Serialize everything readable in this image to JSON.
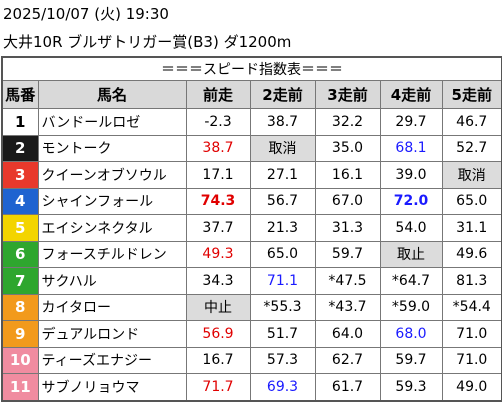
{
  "header": {
    "datetime": "2025/10/07 (火) 19:30",
    "race": "大井10R ブルザトリガー賞(B3) ダ1200m"
  },
  "table": {
    "title": "＝＝＝スピード指数表＝＝＝",
    "columns": [
      "馬番",
      "馬名",
      "前走",
      "2走前",
      "3走前",
      "4走前",
      "5走前"
    ],
    "rows": [
      {
        "number": "1",
        "number_bg": "#ffffff",
        "number_color": "#000000",
        "name": "バンドールロゼ",
        "cells": [
          {
            "text": "-2.3"
          },
          {
            "text": "38.7"
          },
          {
            "text": "32.2"
          },
          {
            "text": "29.7"
          },
          {
            "text": "46.7"
          }
        ]
      },
      {
        "number": "2",
        "number_bg": "#1a1a1a",
        "number_color": "#ffffff",
        "name": "モントーク",
        "cells": [
          {
            "text": "38.7",
            "color": "#e00000"
          },
          {
            "text": "取消",
            "bg": "#dcdcdc"
          },
          {
            "text": "35.0"
          },
          {
            "text": "68.1",
            "color": "#1a1aff"
          },
          {
            "text": "52.7"
          }
        ]
      },
      {
        "number": "3",
        "number_bg": "#e8392c",
        "number_color": "#ffffff",
        "name": "クイーンオブソウル",
        "cells": [
          {
            "text": "17.1"
          },
          {
            "text": "27.1"
          },
          {
            "text": "16.1"
          },
          {
            "text": "39.0"
          },
          {
            "text": "取消",
            "bg": "#dcdcdc"
          }
        ]
      },
      {
        "number": "4",
        "number_bg": "#1f63d0",
        "number_color": "#ffffff",
        "name": "シャインフォール",
        "cells": [
          {
            "text": "74.3",
            "color": "#e00000",
            "bold": true
          },
          {
            "text": "56.7"
          },
          {
            "text": "67.0"
          },
          {
            "text": "72.0",
            "color": "#1a1aff",
            "bold": true
          },
          {
            "text": "65.0"
          }
        ]
      },
      {
        "number": "5",
        "number_bg": "#f3d400",
        "number_color": "#ffffff",
        "name": "エイシンネクタル",
        "cells": [
          {
            "text": "37.7"
          },
          {
            "text": "21.3"
          },
          {
            "text": "31.3"
          },
          {
            "text": "54.0"
          },
          {
            "text": "31.1"
          }
        ]
      },
      {
        "number": "6",
        "number_bg": "#2ea62e",
        "number_color": "#ffffff",
        "name": "フォースチルドレン",
        "cells": [
          {
            "text": "49.3",
            "color": "#e00000"
          },
          {
            "text": "65.0"
          },
          {
            "text": "59.7"
          },
          {
            "text": "取止",
            "bg": "#dcdcdc"
          },
          {
            "text": "49.6"
          }
        ]
      },
      {
        "number": "7",
        "number_bg": "#2ea62e",
        "number_color": "#ffffff",
        "name": "サクハル",
        "cells": [
          {
            "text": "34.3"
          },
          {
            "text": "71.1",
            "color": "#1a1aff"
          },
          {
            "text": "*47.5"
          },
          {
            "text": "*64.7"
          },
          {
            "text": "81.3"
          }
        ]
      },
      {
        "number": "8",
        "number_bg": "#f29a1c",
        "number_color": "#ffffff",
        "name": "カイタロー",
        "cells": [
          {
            "text": "中止",
            "bg": "#dcdcdc"
          },
          {
            "text": "*55.3"
          },
          {
            "text": "*43.7"
          },
          {
            "text": "*59.0"
          },
          {
            "text": "*54.4"
          }
        ]
      },
      {
        "number": "9",
        "number_bg": "#f29a1c",
        "number_color": "#ffffff",
        "name": "デュアルロンド",
        "cells": [
          {
            "text": "56.9",
            "color": "#e00000"
          },
          {
            "text": "51.7"
          },
          {
            "text": "64.0"
          },
          {
            "text": "68.0",
            "color": "#1a1aff"
          },
          {
            "text": "71.0"
          }
        ]
      },
      {
        "number": "10",
        "number_bg": "#f08ca0",
        "number_color": "#ffffff",
        "name": "ティーズエナジー",
        "cells": [
          {
            "text": "16.7"
          },
          {
            "text": "57.3"
          },
          {
            "text": "62.7"
          },
          {
            "text": "59.7"
          },
          {
            "text": "71.0"
          }
        ]
      },
      {
        "number": "11",
        "number_bg": "#f08ca0",
        "number_color": "#ffffff",
        "name": "サブノリョウマ",
        "cells": [
          {
            "text": "71.7",
            "color": "#e00000"
          },
          {
            "text": "69.3",
            "color": "#1a1aff"
          },
          {
            "text": "61.7"
          },
          {
            "text": "59.3"
          },
          {
            "text": "49.0"
          }
        ]
      }
    ]
  }
}
